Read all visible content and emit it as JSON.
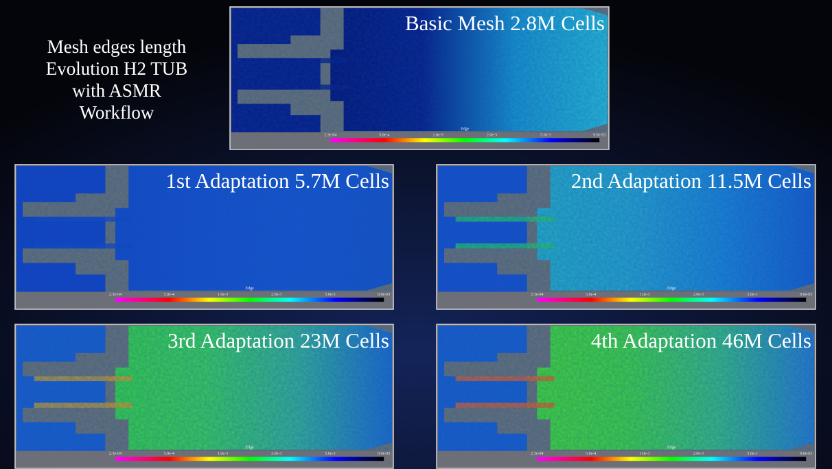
{
  "title_lines": [
    "Mesh edges length",
    "Evolution H2 TUB",
    "with ASMR",
    "Workflow"
  ],
  "panels": [
    {
      "title": "Basic Mesh 2.8M Cells"
    },
    {
      "title": "1st Adaptation 5.7M Cells"
    },
    {
      "title": "2nd Adaptation 11.5M Cells"
    },
    {
      "title": "3rd Adaptation 23M Cells"
    },
    {
      "title": "4th Adaptation 46M Cells"
    }
  ],
  "colorbar": {
    "label": "Edge",
    "ticks": [
      "2.3e-04",
      "5.0e-4",
      "1.0e-3",
      "2.0e-3",
      "5.0e-3",
      "9.0e-03"
    ]
  }
}
